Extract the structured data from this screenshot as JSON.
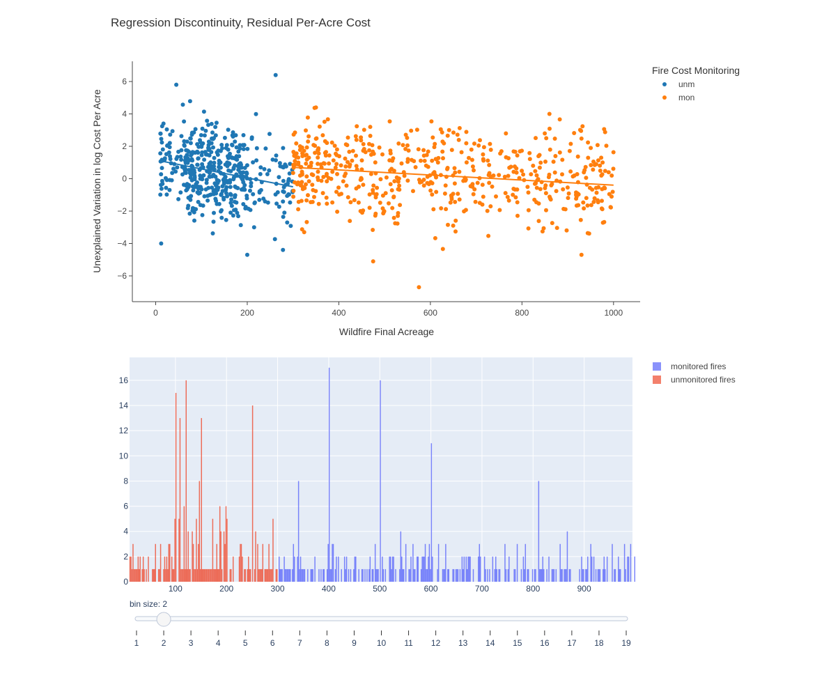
{
  "title": "Regression Discontinuity, Residual Per-Acre Cost",
  "chart_data": [
    {
      "type": "scatter",
      "title": "Regression Discontinuity, Residual Per-Acre Cost",
      "xlabel": "Wildfire Final Acreage",
      "ylabel": "Unexplained Variation in log Cost Per Acre",
      "xlim": [
        -50,
        1060
      ],
      "ylim": [
        -7.5,
        7.2
      ],
      "xticks": [
        0,
        200,
        400,
        600,
        800,
        1000
      ],
      "yticks": [
        6,
        4,
        2,
        0,
        -2,
        -4,
        -6
      ],
      "ytick_labels": [
        "6",
        "4",
        "2",
        "0",
        "−2",
        "−4",
        "−6"
      ],
      "grid": false,
      "legend_position": "top-right",
      "legend_title": "Fire Cost Monitoring",
      "series": [
        {
          "name": "unm",
          "color": "#1f77b4",
          "x_range": [
            10,
            300
          ],
          "fit_line": [
            [
              10,
              1.1
            ],
            [
              300,
              -0.5
            ]
          ],
          "notable_points": [
            [
              45,
              5.8
            ],
            [
              262,
              6.4
            ],
            [
              12,
              -4.0
            ],
            [
              200,
              -4.7
            ],
            [
              278,
              -4.4
            ]
          ]
        },
        {
          "name": "mon",
          "color": "#ff7f0e",
          "x_range": [
            300,
            1000
          ],
          "fit_line": [
            [
              300,
              0.7
            ],
            [
              1000,
              -0.4
            ]
          ],
          "notable_points": [
            [
              350,
              4.4
            ],
            [
              860,
              4.0
            ],
            [
              575,
              -6.7
            ],
            [
              475,
              -5.1
            ],
            [
              930,
              -4.7
            ]
          ]
        }
      ]
    },
    {
      "type": "bar",
      "subtype": "histogram",
      "xlim": [
        10,
        1000
      ],
      "ylim": [
        0,
        17.9
      ],
      "xticks": [
        100,
        200,
        300,
        400,
        500,
        600,
        700,
        800,
        900
      ],
      "yticks": [
        0,
        2,
        4,
        6,
        8,
        10,
        12,
        14,
        16
      ],
      "grid": true,
      "legend_position": "top-right",
      "bin_size": 2,
      "series": [
        {
          "name": "monitored fires",
          "color": "#636efa",
          "x_range": [
            300,
            1000
          ],
          "peaks": [
            [
              400,
              17
            ],
            [
              500,
              16
            ],
            [
              600,
              11
            ],
            [
              340,
              8
            ],
            [
              810,
              8
            ]
          ]
        },
        {
          "name": "unmonitored fires",
          "color": "#ef553b",
          "x_range": [
            10,
            300
          ],
          "peaks": [
            [
              120,
              16
            ],
            [
              100,
              15
            ],
            [
              250,
              14
            ],
            [
              150,
              13
            ],
            [
              108,
              13
            ]
          ]
        }
      ]
    }
  ],
  "slider": {
    "label": "bin size: 2",
    "value": 2,
    "min": 1,
    "max": 19,
    "ticks": [
      "1",
      "2",
      "3",
      "4",
      "5",
      "6",
      "7",
      "8",
      "9",
      "10",
      "11",
      "12",
      "13",
      "14",
      "15",
      "16",
      "17",
      "18",
      "19"
    ]
  }
}
